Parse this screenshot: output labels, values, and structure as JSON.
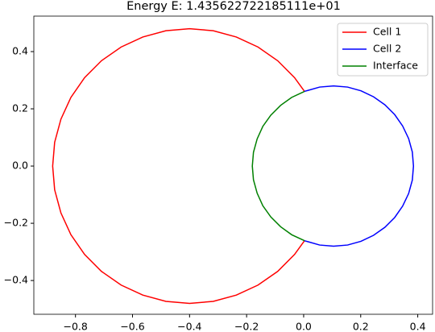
{
  "chart_data": {
    "type": "line",
    "title": "Energy E: 1.435622722185111e+01",
    "xlim": [
      -0.946,
      0.452
    ],
    "ylim": [
      -0.518,
      0.524
    ],
    "xticks": [
      {
        "value": -0.8,
        "label": "−0.8"
      },
      {
        "value": -0.6,
        "label": "−0.6"
      },
      {
        "value": -0.4,
        "label": "−0.4"
      },
      {
        "value": -0.2,
        "label": "−0.2"
      },
      {
        "value": 0.0,
        "label": "0.0"
      },
      0.2,
      0.4
    ],
    "yticks": [
      {
        "value": -0.4,
        "label": "−0.4"
      },
      {
        "value": -0.2,
        "label": "−0.2"
      },
      {
        "value": 0.0,
        "label": "0.0"
      },
      0.2,
      0.4
    ],
    "legend": "upper right",
    "series": [
      {
        "name": "Cell 1",
        "color": "#ff0000",
        "x": [
          0.003,
          -0.032,
          -0.091,
          -0.16,
          -0.236,
          -0.317,
          -0.4,
          -0.483,
          -0.564,
          -0.64,
          -0.709,
          -0.768,
          -0.816,
          -0.851,
          -0.873,
          -0.88,
          -0.873,
          -0.851,
          -0.816,
          -0.768,
          -0.709,
          -0.64,
          -0.564,
          -0.483,
          -0.4,
          -0.317,
          -0.236,
          -0.16,
          -0.091,
          -0.032,
          0.003
        ],
        "values": [
          0.261,
          0.309,
          0.368,
          0.416,
          0.451,
          0.473,
          0.48,
          0.473,
          0.451,
          0.416,
          0.368,
          0.309,
          0.24,
          0.164,
          0.083,
          0,
          -0.083,
          -0.164,
          -0.24,
          -0.309,
          -0.368,
          -0.416,
          -0.451,
          -0.473,
          -0.48,
          -0.473,
          -0.451,
          -0.416,
          -0.368,
          -0.309,
          -0.261
        ]
      },
      {
        "name": "Cell 2",
        "color": "#0000ff",
        "x": [
          0.003,
          0.056,
          0.105,
          0.154,
          0.201,
          0.245,
          0.285,
          0.319,
          0.347,
          0.368,
          0.381,
          0.385,
          0.381,
          0.368,
          0.347,
          0.319,
          0.285,
          0.245,
          0.201,
          0.154,
          0.105,
          0.056,
          0.003
        ],
        "values": [
          0.261,
          0.276,
          0.28,
          0.276,
          0.263,
          0.242,
          0.214,
          0.18,
          0.14,
          0.096,
          0.049,
          0,
          -0.049,
          -0.096,
          -0.14,
          -0.18,
          -0.214,
          -0.242,
          -0.263,
          -0.276,
          -0.28,
          -0.276,
          -0.261
        ]
      },
      {
        "name": "Interface",
        "color": "#008000",
        "x": [
          0.003,
          -0.042,
          -0.081,
          -0.115,
          -0.143,
          -0.163,
          -0.176,
          -0.18,
          -0.176,
          -0.163,
          -0.143,
          -0.115,
          -0.081,
          -0.042,
          0.003
        ],
        "values": [
          0.261,
          0.24,
          0.212,
          0.178,
          0.139,
          0.095,
          0.048,
          0,
          -0.048,
          -0.095,
          -0.139,
          -0.178,
          -0.212,
          -0.24,
          -0.261
        ]
      }
    ]
  }
}
